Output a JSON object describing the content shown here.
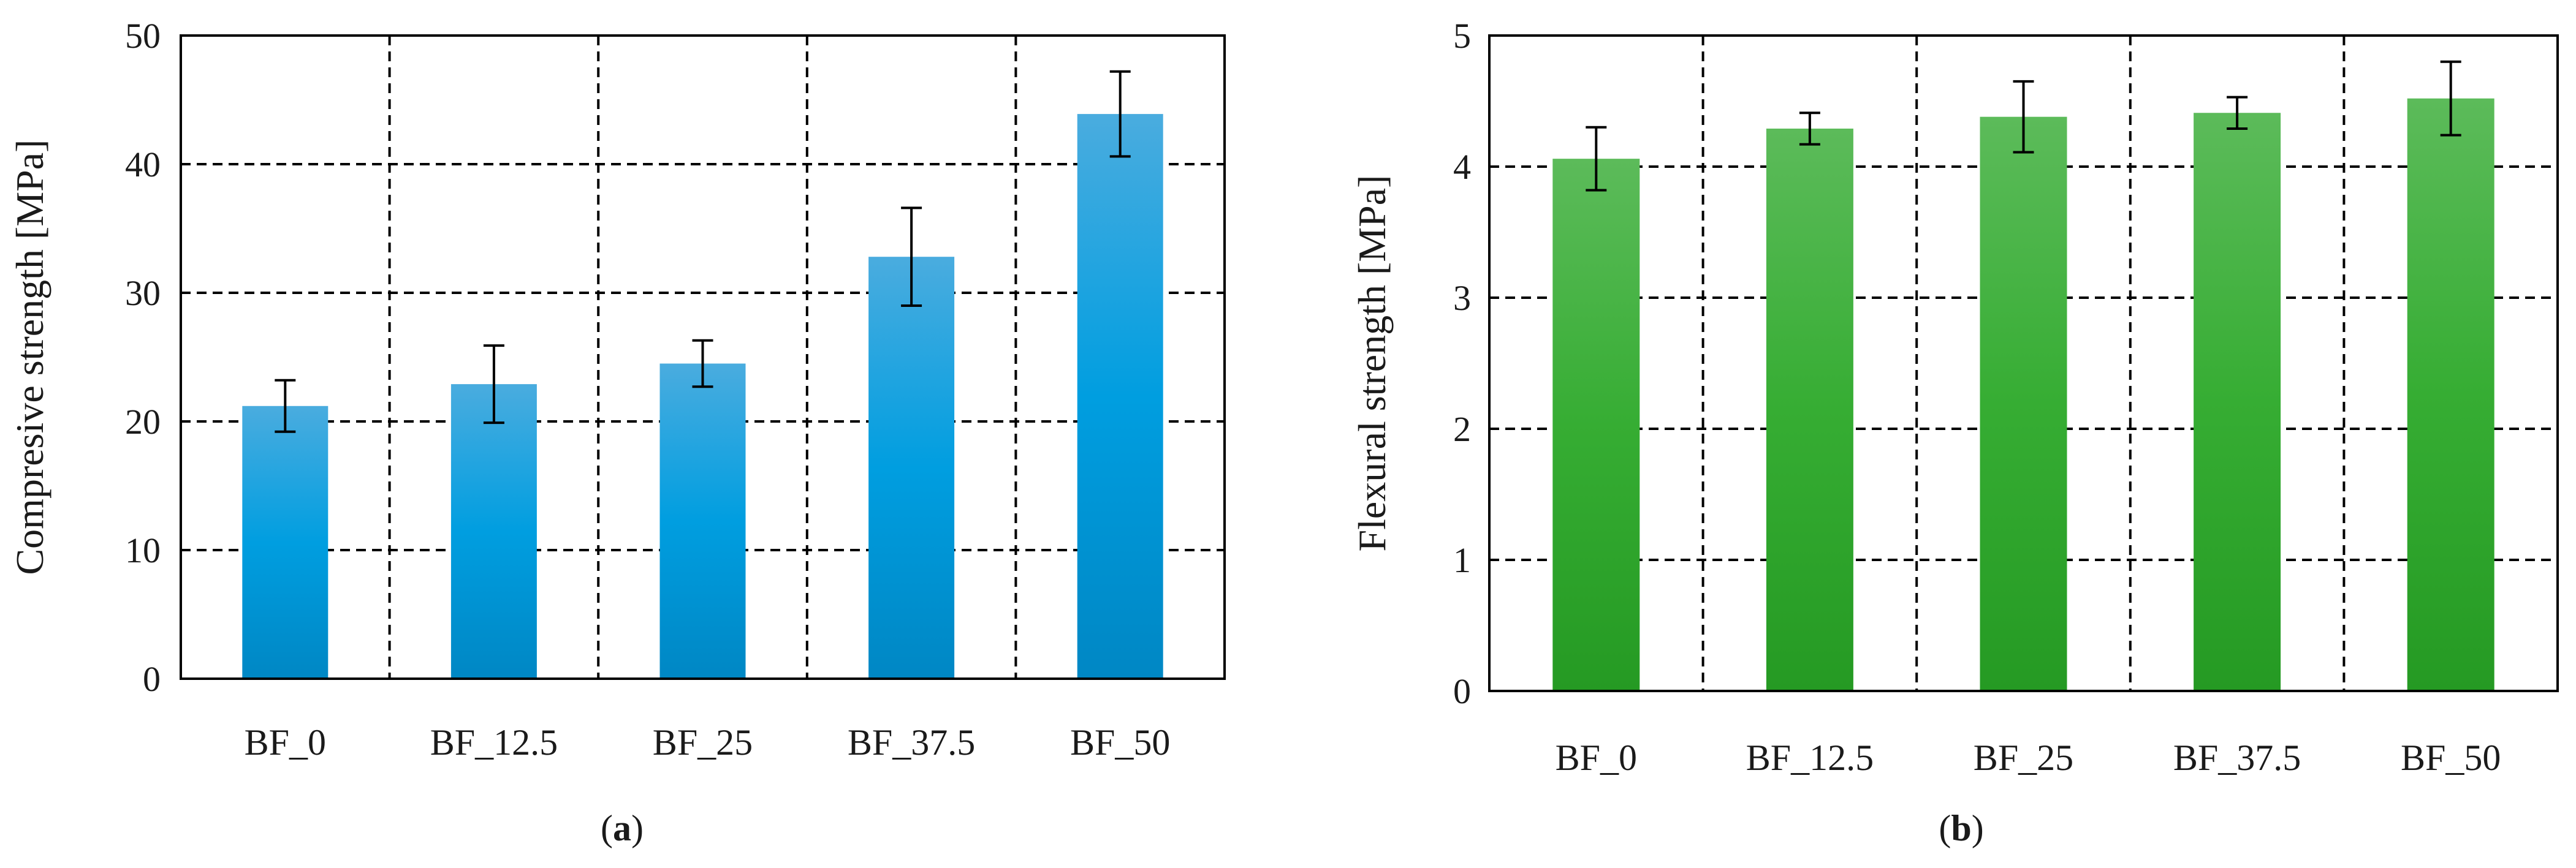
{
  "chart_data": [
    {
      "type": "bar",
      "panel_label": "a",
      "categories": [
        "BF_0",
        "BF_12.5",
        "BF_25",
        "BF_37.5",
        "BF_50"
      ],
      "values": [
        21.2,
        22.9,
        24.5,
        32.8,
        43.9
      ],
      "errors": [
        2.0,
        3.0,
        1.8,
        3.8,
        3.3
      ],
      "title": "",
      "xlabel": "",
      "ylabel": "Compresive strength [MPa]",
      "ylim": [
        0,
        50
      ],
      "yticks": [
        "0",
        "10",
        "20",
        "30",
        "40",
        "50"
      ],
      "grid": true,
      "bar_color": "#0099dd"
    },
    {
      "type": "bar",
      "panel_label": "b",
      "categories": [
        "BF_0",
        "BF_12.5",
        "BF_25",
        "BF_37.5",
        "BF_50"
      ],
      "values": [
        4.06,
        4.29,
        4.38,
        4.41,
        4.52
      ],
      "errors": [
        0.24,
        0.12,
        0.27,
        0.12,
        0.28
      ],
      "title": "",
      "xlabel": "",
      "ylabel": "Flexural strength [MPa]",
      "ylim": [
        0,
        5
      ],
      "yticks": [
        "0",
        "1",
        "2",
        "3",
        "4",
        "5"
      ],
      "grid": true,
      "bar_color": "#2eaa2e"
    }
  ]
}
